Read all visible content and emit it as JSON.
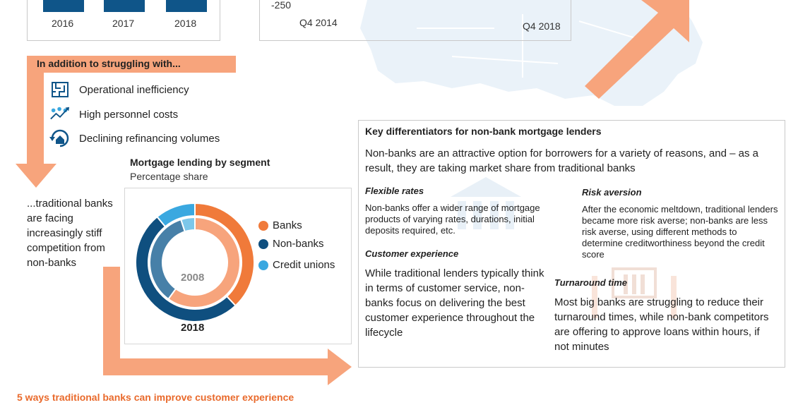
{
  "top_bar_chart": {
    "years": [
      "2016",
      "2017",
      "2018"
    ]
  },
  "top_line_chart": {
    "y_tick": "-250",
    "x_start": "Q4 2014",
    "x_end": "Q4 2018"
  },
  "struggles": {
    "title": "In addition to struggling with...",
    "items": [
      {
        "icon": "maze-icon",
        "label": "Operational inefficiency"
      },
      {
        "icon": "people-cost-icon",
        "label": "High personnel costs"
      },
      {
        "icon": "house-refresh-icon",
        "label": "Declining refinancing volumes"
      }
    ]
  },
  "traditional_text": "...traditional banks are facing increasingly stiff competition from non-banks",
  "chart_data": {
    "type": "pie",
    "title": "Mortgage lending by segment",
    "subtitle": "Percentage share",
    "inner_label": "2008",
    "outer_label": "2018",
    "categories": [
      "Banks",
      "Non-banks",
      "Credit unions"
    ],
    "series": [
      {
        "name": "2018",
        "values": [
          38,
          51,
          11
        ]
      },
      {
        "name": "2008",
        "values": [
          60,
          35,
          5
        ]
      }
    ],
    "colors": [
      "#f07a3a",
      "#0f4f7f",
      "#3aa8e0"
    ],
    "inner_colors": [
      "#f7a47c",
      "#4780a8",
      "#7cc7ea"
    ],
    "legend_position": "right"
  },
  "differentiators": {
    "title": "Key differentiators for non-bank mortgage lenders",
    "intro": "Non-banks are an attractive option for borrowers for a variety of reasons, and – as a result, they are taking market share from traditional banks",
    "flexible": {
      "heading": "Flexible rates",
      "text": "Non-banks offer a wider range of mortgage products of varying rates, durations, initial deposits required, etc."
    },
    "customer": {
      "heading": "Customer experience",
      "text": "While traditional lenders typically think in terms of customer service, non-banks focus on delivering the best customer experience throughout the lifecycle"
    },
    "risk": {
      "heading": "Risk aversion",
      "text": "After the economic meltdown, traditional lenders became more risk averse; non-banks are less risk averse, using different methods to determine creditworthiness beyond the credit score"
    },
    "turnaround": {
      "heading": "Turnaround time",
      "text": "Most big banks are struggling to reduce their turnaround times, while non-bank competitors are offering to approve loans within hours, if not minutes"
    }
  },
  "footer": {
    "five_ways": "5 ways traditional banks can improve customer experience"
  },
  "colors": {
    "accent_orange": "#f7a47c",
    "navy": "#0f5589",
    "heading_orange": "#e96a2c"
  }
}
